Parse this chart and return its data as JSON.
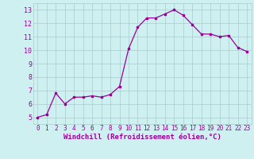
{
  "x": [
    0,
    1,
    2,
    3,
    4,
    5,
    6,
    7,
    8,
    9,
    10,
    11,
    12,
    13,
    14,
    15,
    16,
    17,
    18,
    19,
    20,
    21,
    22,
    23
  ],
  "y": [
    5.0,
    5.2,
    6.8,
    6.0,
    6.5,
    6.5,
    6.6,
    6.5,
    6.7,
    7.3,
    10.1,
    11.7,
    12.4,
    12.4,
    12.7,
    13.0,
    12.6,
    11.9,
    11.2,
    11.2,
    11.0,
    11.1,
    10.2,
    9.9
  ],
  "line_color": "#990099",
  "marker": "s",
  "marker_size": 1.8,
  "bg_color": "#cff0f0",
  "grid_color": "#aacccc",
  "xlabel": "Windchill (Refroidissement éolien,°C)",
  "xlabel_color": "#990099",
  "xlabel_fontsize": 6.5,
  "xlim": [
    -0.5,
    23.5
  ],
  "ylim": [
    4.5,
    13.5
  ],
  "yticks": [
    5,
    6,
    7,
    8,
    9,
    10,
    11,
    12,
    13
  ],
  "xticks": [
    0,
    1,
    2,
    3,
    4,
    5,
    6,
    7,
    8,
    9,
    10,
    11,
    12,
    13,
    14,
    15,
    16,
    17,
    18,
    19,
    20,
    21,
    22,
    23
  ],
  "tick_fontsize": 5.5,
  "ytick_fontsize": 6.0
}
